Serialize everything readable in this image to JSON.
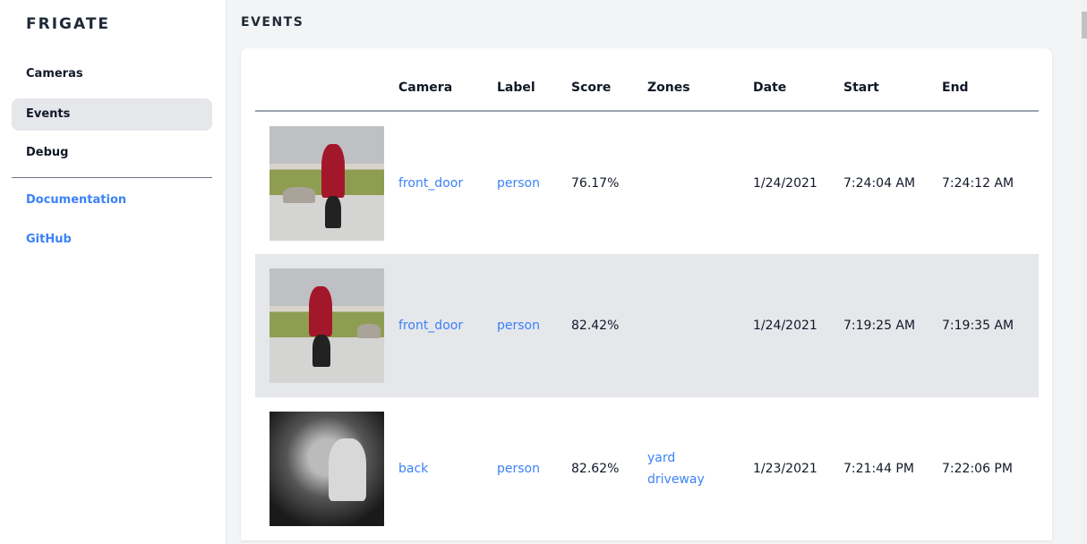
{
  "sidebar": {
    "brand": "FRIGATE",
    "items": [
      {
        "label": "Cameras",
        "active": false
      },
      {
        "label": "Events",
        "active": true
      },
      {
        "label": "Debug",
        "active": false
      }
    ],
    "links": [
      {
        "label": "Documentation"
      },
      {
        "label": "GitHub"
      }
    ]
  },
  "page": {
    "title": "EVENTS"
  },
  "table": {
    "columns": [
      "",
      "Camera",
      "Label",
      "Score",
      "Zones",
      "Date",
      "Start",
      "End"
    ],
    "rows": [
      {
        "camera": "front_door",
        "label": "person",
        "score": "76.17%",
        "zones": [],
        "date": "1/24/2021",
        "start": "7:24:04 AM",
        "end": "7:24:12 AM"
      },
      {
        "camera": "front_door",
        "label": "person",
        "score": "82.42%",
        "zones": [],
        "date": "1/24/2021",
        "start": "7:19:25 AM",
        "end": "7:19:35 AM"
      },
      {
        "camera": "back",
        "label": "person",
        "score": "82.62%",
        "zones": [
          "yard",
          "driveway"
        ],
        "date": "1/23/2021",
        "start": "7:21:44 PM",
        "end": "7:22:06 PM"
      }
    ]
  },
  "colors": {
    "accent": "#3b82f6",
    "active_bg": "#e5e7eb",
    "page_bg": "#f3f4f6"
  }
}
